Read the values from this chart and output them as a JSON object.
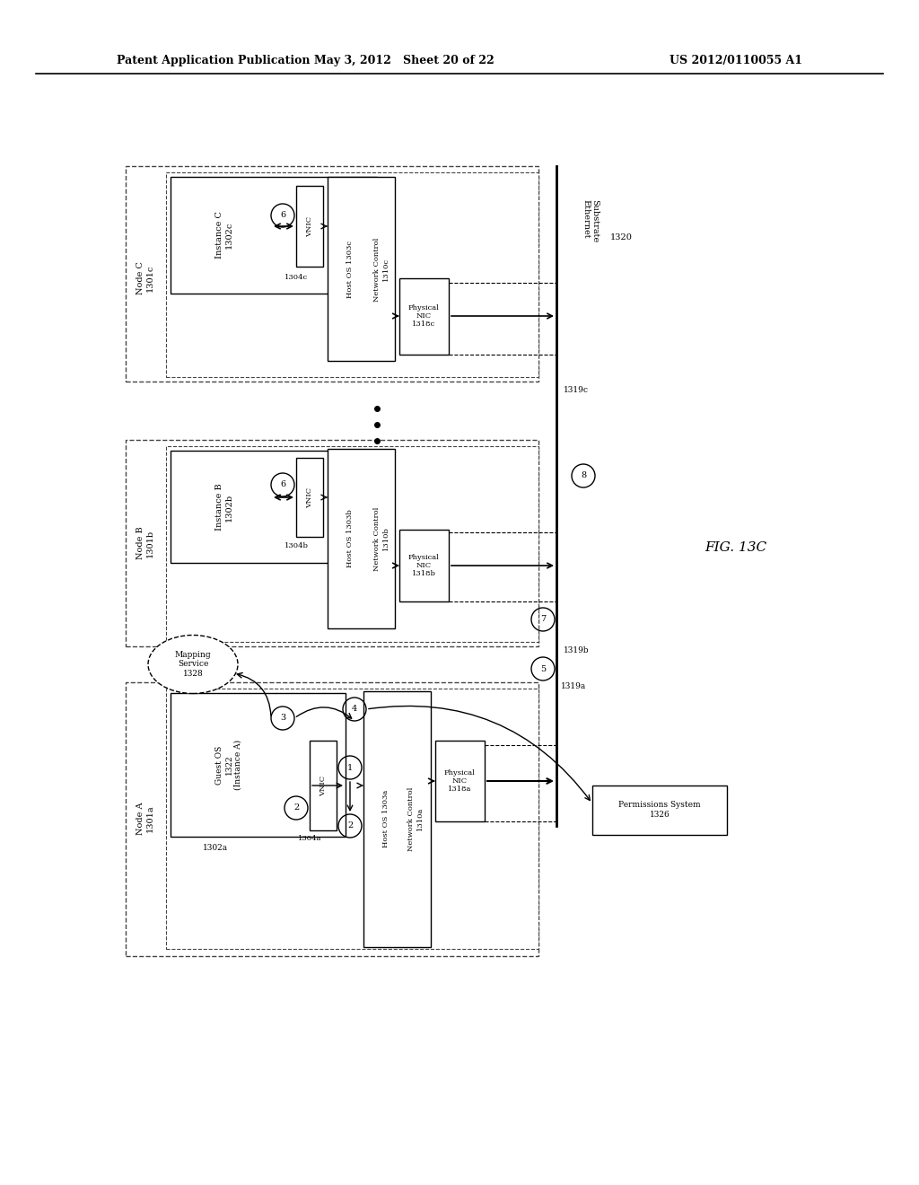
{
  "header_left": "Patent Application Publication",
  "header_mid": "May 3, 2012   Sheet 20 of 22",
  "header_right": "US 2012/0110055 A1",
  "fig_label": "FIG. 13C",
  "bg": "#ffffff",
  "substrate_label": "Substrate\nEthernet",
  "substrate_num": "1320",
  "node_c_label": "Node C\n1301c",
  "node_b_label": "Node B\n1301b",
  "node_a_label": "Node A\n1301a",
  "instance_c": "Instance C\n1302c",
  "instance_b": "Instance B\n1302b",
  "guest_os": "Guest OS\n1322\n(Instance A)",
  "num_1302a": "1302a",
  "host_os_c": "Host OS 1303c",
  "net_ctrl_c": "Network Control\n1310c",
  "host_os_b": "Host OS 1303b",
  "net_ctrl_b": "Network Control\n1310b",
  "host_os_a": "Host OS 1303a",
  "net_ctrl_a": "Network Control\n1310a",
  "vnic_c": "VNIC",
  "vnic_num_c": "1304c",
  "vnic_b": "VNIC",
  "vnic_num_b": "1304b",
  "vnic_a": "VNIC",
  "vnic_num_a": "1304a",
  "phynic_c": "Physical\nNIC\n1318c",
  "phynic_b": "Physical\nNIC\n1318b",
  "phynic_a": "Physical\nNIC\n1318a",
  "mapping": "Mapping\nService\n1328",
  "permissions": "Permissions System\n1326",
  "label_1319a": "1319a",
  "label_1319b": "1319b",
  "label_1319c": "1319c"
}
